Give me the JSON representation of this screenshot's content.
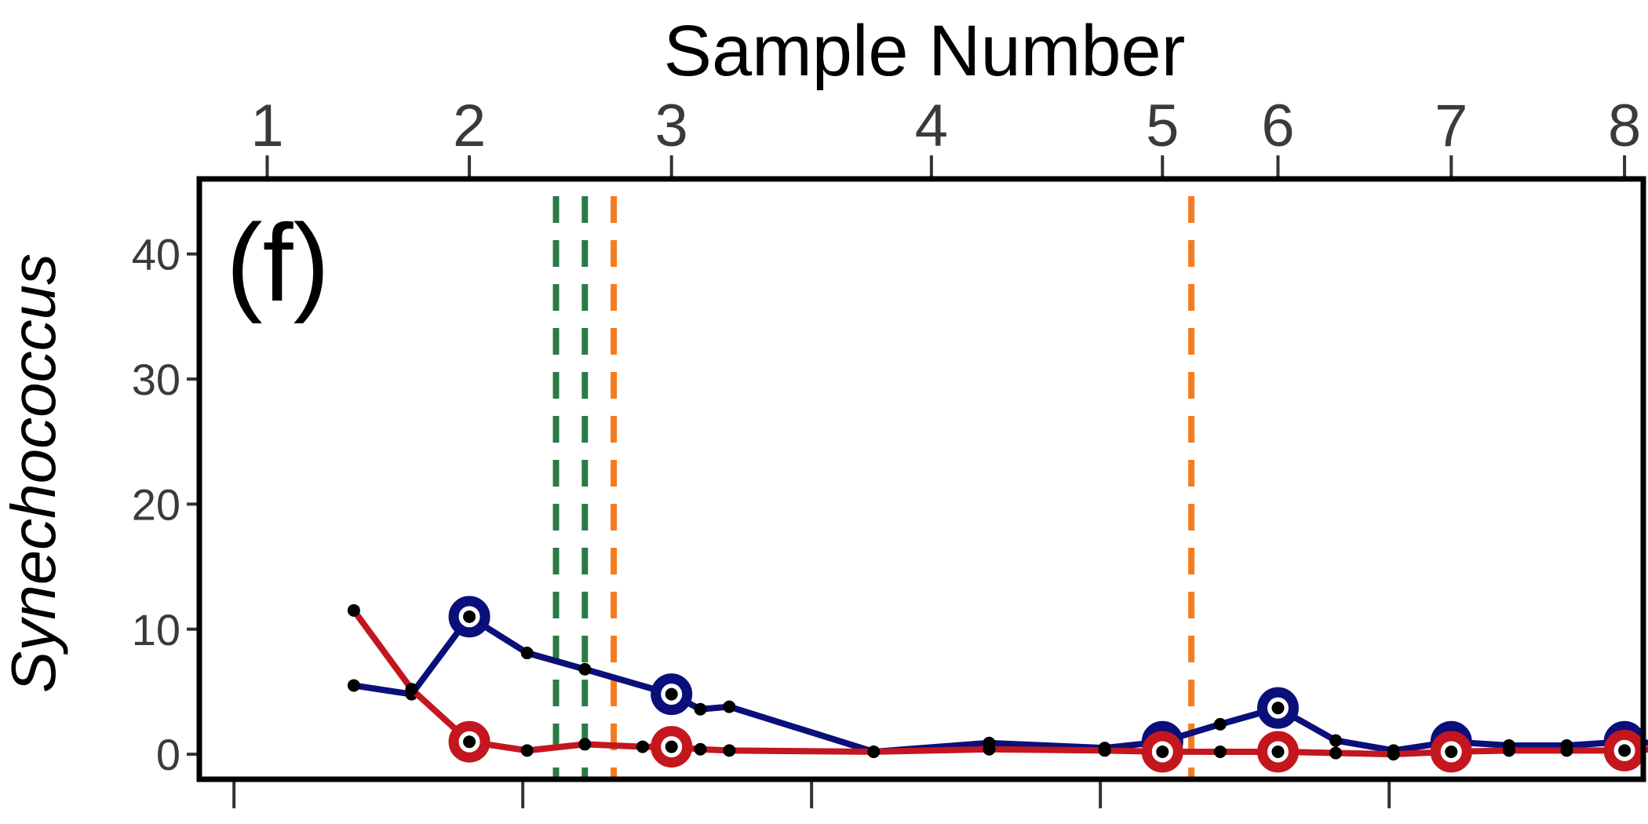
{
  "chart_data": {
    "type": "line",
    "panel_label": "(f)",
    "title": "Sample Number",
    "ylabel": "Synechococcus",
    "ylim": [
      -2,
      46
    ],
    "yticks": [
      0,
      10,
      20,
      30,
      40
    ],
    "xlim": [
      0,
      10.0
    ],
    "bottom_ticks": [
      0.24,
      2.24,
      4.24,
      6.24,
      8.24,
      10.24
    ],
    "sample_axis": {
      "labels": [
        "1",
        "2",
        "3",
        "4",
        "5",
        "6",
        "7",
        "8"
      ],
      "positions": [
        0.47,
        1.87,
        3.27,
        5.07,
        6.67,
        7.47,
        8.67,
        9.87
      ]
    },
    "vlines": [
      {
        "x": 2.47,
        "color": "#2a7a45"
      },
      {
        "x": 2.67,
        "color": "#2a7a45"
      },
      {
        "x": 2.87,
        "color": "#f47c20"
      },
      {
        "x": 6.87,
        "color": "#f47c20"
      }
    ],
    "series": [
      {
        "color": "#0a0f7a",
        "points": [
          [
            1.07,
            5.5
          ],
          [
            1.47,
            4.8
          ],
          [
            1.87,
            11.0
          ],
          [
            2.27,
            8.1
          ],
          [
            2.67,
            6.8
          ],
          [
            3.27,
            4.8
          ],
          [
            3.47,
            3.6
          ],
          [
            3.67,
            3.8
          ],
          [
            4.67,
            0.2
          ],
          [
            5.47,
            0.9
          ],
          [
            6.27,
            0.5
          ],
          [
            6.67,
            1.0
          ],
          [
            7.07,
            2.4
          ],
          [
            7.47,
            3.7
          ],
          [
            7.87,
            1.1
          ],
          [
            8.27,
            0.3
          ],
          [
            8.67,
            1.0
          ],
          [
            9.07,
            0.7
          ],
          [
            9.47,
            0.7
          ],
          [
            9.87,
            1.0
          ],
          [
            10.27,
            0.8
          ]
        ],
        "highlight": [
          2,
          5,
          11,
          13,
          16,
          19
        ]
      },
      {
        "color": "#c4161e",
        "points": [
          [
            1.07,
            11.5
          ],
          [
            1.47,
            5.2
          ],
          [
            1.87,
            1.0
          ],
          [
            2.27,
            0.3
          ],
          [
            2.67,
            0.8
          ],
          [
            3.07,
            0.6
          ],
          [
            3.27,
            0.6
          ],
          [
            3.47,
            0.4
          ],
          [
            3.67,
            0.3
          ],
          [
            4.67,
            0.2
          ],
          [
            5.47,
            0.4
          ],
          [
            6.27,
            0.3
          ],
          [
            6.67,
            0.2
          ],
          [
            7.07,
            0.2
          ],
          [
            7.47,
            0.2
          ],
          [
            7.87,
            0.1
          ],
          [
            8.27,
            0.0
          ],
          [
            8.67,
            0.2
          ],
          [
            9.07,
            0.3
          ],
          [
            9.47,
            0.3
          ],
          [
            9.87,
            0.3
          ],
          [
            10.27,
            0.5
          ]
        ],
        "highlight": [
          2,
          6,
          12,
          14,
          17,
          20
        ]
      }
    ]
  }
}
